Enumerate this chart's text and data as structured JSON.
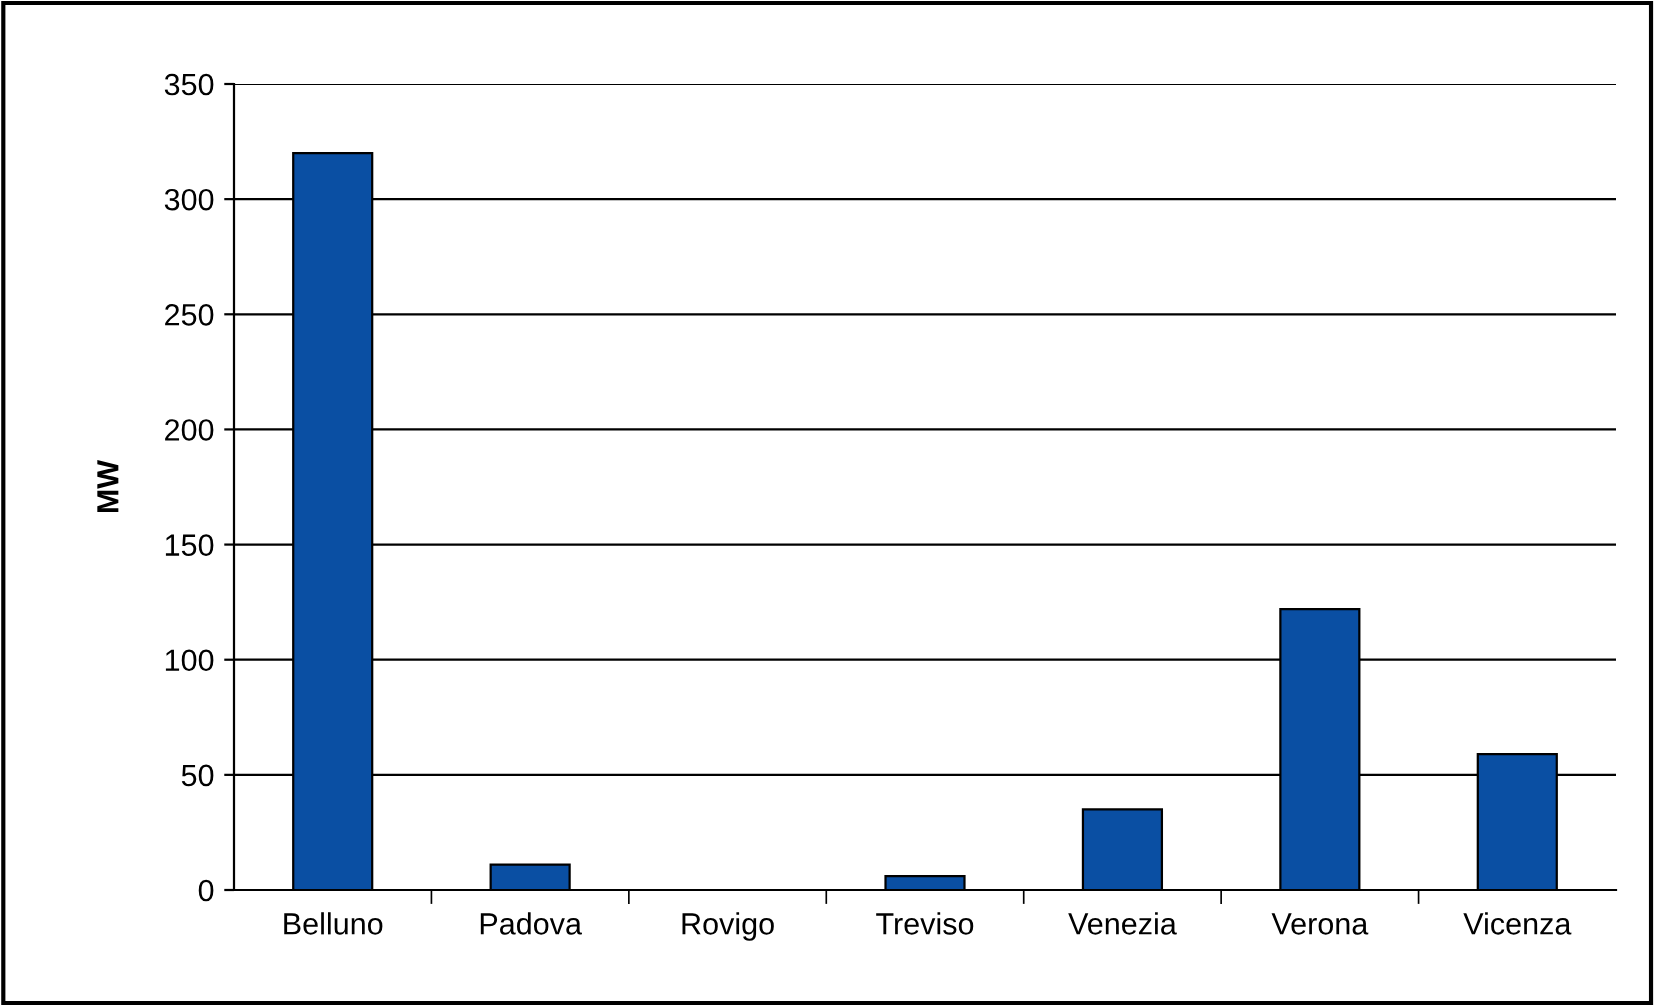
{
  "chart_data": {
    "type": "bar",
    "ylabel": "MW",
    "categories": [
      "Belluno",
      "Padova",
      "Rovigo",
      "Treviso",
      "Venezia",
      "Verona",
      "Vicenza"
    ],
    "values": [
      320,
      11,
      null,
      6,
      35,
      122,
      59
    ],
    "color": "#0a4fa3",
    "ylim": [
      0,
      350
    ],
    "yticks": [
      0,
      50,
      100,
      150,
      200,
      250,
      300,
      350
    ],
    "grid": "y"
  }
}
